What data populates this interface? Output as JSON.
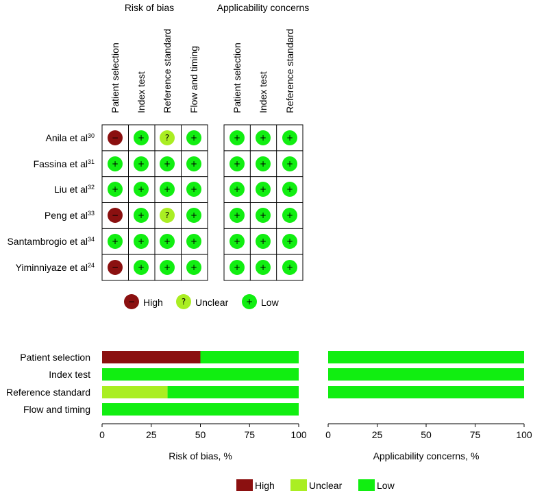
{
  "traffic_light": {
    "group_titles": [
      "Risk of bias",
      "Applicability concerns"
    ],
    "columns": [
      "Patient selection",
      "Index test",
      "Reference standard",
      "Flow and timing",
      "Patient selection",
      "Index test",
      "Reference standard"
    ],
    "studies": [
      {
        "name": "Anila et al",
        "ref": "30",
        "ratings": [
          "high",
          "low",
          "unclear",
          "low",
          "low",
          "low",
          "low"
        ]
      },
      {
        "name": "Fassina et al",
        "ref": "31",
        "ratings": [
          "low",
          "low",
          "low",
          "low",
          "low",
          "low",
          "low"
        ]
      },
      {
        "name": "Liu et al",
        "ref": "32",
        "ratings": [
          "low",
          "low",
          "low",
          "low",
          "low",
          "low",
          "low"
        ]
      },
      {
        "name": "Peng et al",
        "ref": "33",
        "ratings": [
          "high",
          "low",
          "unclear",
          "low",
          "low",
          "low",
          "low"
        ]
      },
      {
        "name": "Santambrogio et al",
        "ref": "34",
        "ratings": [
          "low",
          "low",
          "low",
          "low",
          "low",
          "low",
          "low"
        ]
      },
      {
        "name": "Yiminniyaze et al",
        "ref": "24",
        "ratings": [
          "high",
          "low",
          "low",
          "low",
          "low",
          "low",
          "low"
        ]
      }
    ],
    "symbols": {
      "high": "−",
      "unclear": "?",
      "low": "+"
    },
    "legend": [
      {
        "key": "high",
        "label": "High"
      },
      {
        "key": "unclear",
        "label": "Unclear"
      },
      {
        "key": "low",
        "label": "Low"
      }
    ]
  },
  "colors": {
    "high": "#8b1010",
    "unclear": "#aaee22",
    "low": "#11ee11",
    "grid": "#000000"
  },
  "chart_data": [
    {
      "type": "bar",
      "orientation": "horizontal",
      "stacked": true,
      "title": "",
      "xlabel": "Risk of bias, %",
      "categories": [
        "Patient selection",
        "Index test",
        "Reference standard",
        "Flow and timing"
      ],
      "series": [
        {
          "name": "High",
          "key": "high",
          "values": [
            50,
            0,
            0,
            0
          ]
        },
        {
          "name": "Unclear",
          "key": "unclear",
          "values": [
            0,
            0,
            33.3,
            0
          ]
        },
        {
          "name": "Low",
          "key": "low",
          "values": [
            50,
            100,
            66.7,
            100
          ]
        }
      ],
      "xlim": [
        0,
        100
      ],
      "xticks": [
        "0",
        "25",
        "50",
        "75",
        "100"
      ]
    },
    {
      "type": "bar",
      "orientation": "horizontal",
      "stacked": true,
      "title": "",
      "xlabel": "Applicability concerns, %",
      "categories": [
        "Patient selection",
        "Index test",
        "Reference standard"
      ],
      "series": [
        {
          "name": "High",
          "key": "high",
          "values": [
            0,
            0,
            0
          ]
        },
        {
          "name": "Unclear",
          "key": "unclear",
          "values": [
            0,
            0,
            0
          ]
        },
        {
          "name": "Low",
          "key": "low",
          "values": [
            100,
            100,
            100
          ]
        }
      ],
      "xlim": [
        0,
        100
      ],
      "xticks": [
        "0",
        "25",
        "50",
        "75",
        "100"
      ]
    }
  ],
  "bar_legend": [
    {
      "key": "high",
      "label": "High"
    },
    {
      "key": "unclear",
      "label": "Unclear"
    },
    {
      "key": "low",
      "label": "Low"
    }
  ]
}
